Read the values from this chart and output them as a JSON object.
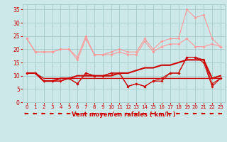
{
  "x": [
    0,
    1,
    2,
    3,
    4,
    5,
    6,
    7,
    8,
    9,
    10,
    11,
    12,
    13,
    14,
    15,
    16,
    17,
    18,
    19,
    20,
    21,
    22,
    23
  ],
  "line1": [
    24,
    19,
    19,
    19,
    20,
    20,
    16,
    24,
    18,
    18,
    18,
    19,
    18,
    18,
    23,
    19,
    21,
    22,
    22,
    24,
    21,
    21,
    22,
    21
  ],
  "line2": [
    24,
    19,
    19,
    19,
    20,
    20,
    17,
    25,
    18,
    18,
    19,
    20,
    19,
    19,
    24,
    20,
    23,
    24,
    24,
    35,
    32,
    33,
    24,
    21
  ],
  "line3": [
    11,
    11,
    8,
    8,
    8,
    9,
    7,
    11,
    10,
    10,
    11,
    11,
    6,
    7,
    6,
    8,
    9,
    11,
    11,
    17,
    17,
    16,
    7,
    9
  ],
  "line4": [
    11,
    11,
    8,
    8,
    8,
    9,
    7,
    11,
    10,
    10,
    11,
    11,
    6,
    7,
    6,
    8,
    8,
    11,
    11,
    17,
    17,
    15,
    6,
    9
  ],
  "line5": [
    11,
    11,
    8,
    8,
    9,
    9,
    10,
    10,
    10,
    10,
    10,
    11,
    11,
    12,
    13,
    13,
    14,
    14,
    15,
    16,
    16,
    16,
    9,
    10
  ],
  "line6": [
    11,
    11,
    9,
    9,
    9,
    9,
    9,
    9,
    9,
    9,
    9,
    9,
    9,
    9,
    9,
    9,
    9,
    9,
    9,
    9,
    9,
    9,
    9,
    9
  ],
  "bg_color": "#cce8e8",
  "grid_color": "#aacece",
  "color_light": "#ff9999",
  "color_dark": "#cc0000",
  "xlabel": "Vent moyen/en rafales ( km/h )",
  "ylabel_ticks": [
    0,
    5,
    10,
    15,
    20,
    25,
    30,
    35
  ],
  "xlim": [
    -0.5,
    23.5
  ],
  "ylim": [
    0,
    37
  ]
}
